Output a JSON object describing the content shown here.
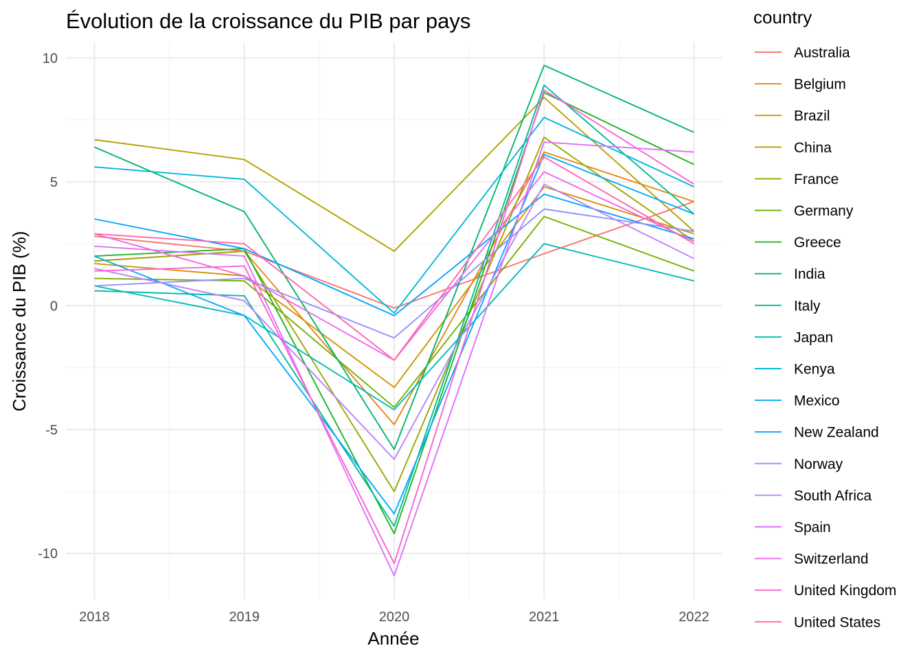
{
  "chart_data": {
    "type": "line",
    "title": "Évolution de la croissance du PIB par pays",
    "xlabel": "Année",
    "ylabel": "Croissance du PIB (%)",
    "x": [
      2018,
      2019,
      2020,
      2021,
      2022
    ],
    "x_tick_labels": [
      "2018",
      "2019",
      "2020",
      "2021",
      "2022"
    ],
    "y_ticks": [
      -10,
      -5,
      0,
      5,
      10
    ],
    "y_tick_labels": [
      "-10",
      "-5",
      "0",
      "5",
      "10"
    ],
    "xlim": [
      2017.81,
      2022.19
    ],
    "ylim": [
      -11.85,
      10.62
    ],
    "grid": true,
    "legend_title": "country",
    "legend_position": "right",
    "series": [
      {
        "name": "Australia",
        "color": "#F8766D",
        "values": [
          2.8,
          2.2,
          -0.1,
          2.1,
          4.2
        ]
      },
      {
        "name": "Belgium",
        "color": "#E7851E",
        "values": [
          1.8,
          2.2,
          -4.8,
          6.2,
          4.2
        ]
      },
      {
        "name": "Brazil",
        "color": "#D09400",
        "values": [
          1.7,
          1.2,
          -3.3,
          4.8,
          2.9
        ]
      },
      {
        "name": "China",
        "color": "#B2A100",
        "values": [
          6.7,
          5.9,
          2.2,
          8.4,
          3.0
        ]
      },
      {
        "name": "France",
        "color": "#9AA800",
        "values": [
          1.8,
          2.2,
          -7.5,
          6.8,
          2.6
        ]
      },
      {
        "name": "Germany",
        "color": "#75AF00",
        "values": [
          1.1,
          1.0,
          -4.1,
          3.6,
          1.4
        ]
      },
      {
        "name": "Greece",
        "color": "#1FB424",
        "values": [
          2.0,
          2.3,
          -9.2,
          8.6,
          5.7
        ]
      },
      {
        "name": "India",
        "color": "#00B66E",
        "values": [
          6.4,
          3.8,
          -5.8,
          9.7,
          7.0
        ]
      },
      {
        "name": "Italy",
        "color": "#00BB9E",
        "values": [
          0.6,
          0.4,
          -8.9,
          8.9,
          3.7
        ]
      },
      {
        "name": "Japan",
        "color": "#00BDB9",
        "values": [
          0.8,
          -0.4,
          -4.2,
          2.5,
          1.0
        ]
      },
      {
        "name": "Kenya",
        "color": "#00B8D9",
        "values": [
          5.6,
          5.1,
          -0.3,
          7.6,
          4.8
        ]
      },
      {
        "name": "Mexico",
        "color": "#00ABFD",
        "values": [
          2.0,
          -0.4,
          -8.4,
          6.1,
          3.7
        ]
      },
      {
        "name": "New Zealand",
        "color": "#00A5FF",
        "values": [
          3.5,
          2.3,
          -0.4,
          4.5,
          2.7
        ]
      },
      {
        "name": "Norway",
        "color": "#8F91FF",
        "values": [
          0.8,
          1.1,
          -1.3,
          3.9,
          3.0
        ]
      },
      {
        "name": "South Africa",
        "color": "#BB81FF",
        "values": [
          1.5,
          0.2,
          -6.2,
          4.9,
          1.9
        ]
      },
      {
        "name": "Spain",
        "color": "#DC71FA",
        "values": [
          2.4,
          2.0,
          -10.9,
          6.6,
          6.2
        ]
      },
      {
        "name": "Switzerland",
        "color": "#EF67EB",
        "values": [
          2.9,
          1.2,
          -2.2,
          5.4,
          2.6
        ]
      },
      {
        "name": "United Kingdom",
        "color": "#FB61D7",
        "values": [
          1.4,
          1.6,
          -10.4,
          8.7,
          4.9
        ]
      },
      {
        "name": "United States",
        "color": "#FF65AD",
        "values": [
          2.9,
          2.5,
          -2.2,
          6.0,
          2.5
        ]
      }
    ]
  }
}
